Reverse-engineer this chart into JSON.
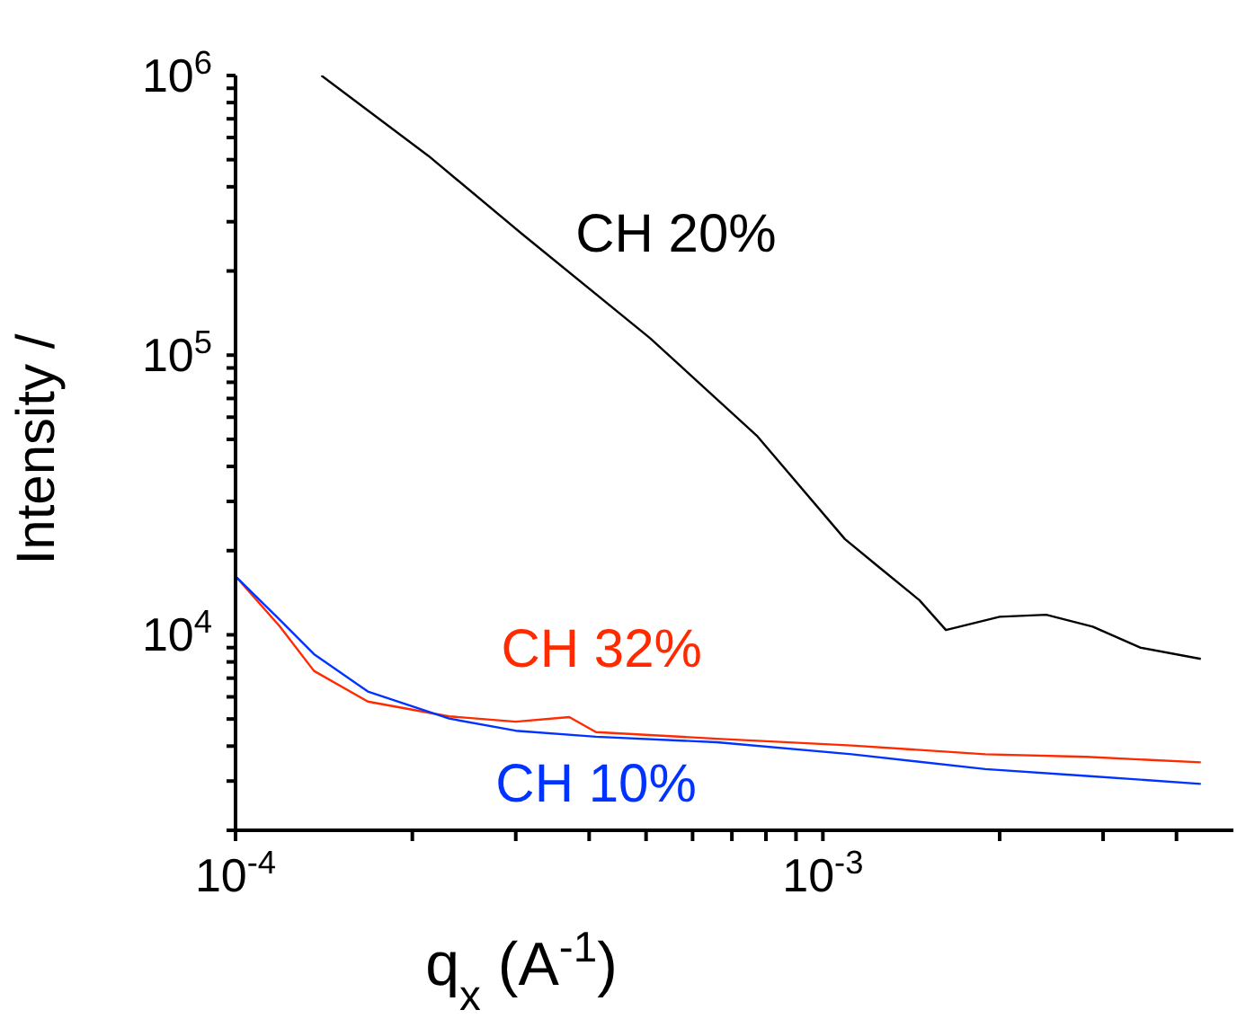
{
  "chart_data": {
    "type": "line",
    "xlabel": "q$_{x}$ (A$^{-1}$)",
    "ylabel": "Intensity /",
    "log": "xy",
    "grid": false,
    "legend": false,
    "marker": "none",
    "line_style": "solid",
    "xlim": [
      0.0001,
      0.005
    ],
    "xticks": [
      {
        "value": 0.0001,
        "label": "10$^{-4}$"
      },
      {
        "value": 0.0002,
        "label": null
      },
      {
        "value": 0.0003,
        "label": null
      },
      {
        "value": 0.0004,
        "label": null
      },
      {
        "value": 0.0005,
        "label": null
      },
      {
        "value": 0.0006,
        "label": null
      },
      {
        "value": 0.0007,
        "label": null
      },
      {
        "value": 0.0008,
        "label": null
      },
      {
        "value": 0.0009,
        "label": null
      },
      {
        "value": 0.001,
        "label": "10$^{-3}$"
      },
      {
        "value": 0.002,
        "label": null
      },
      {
        "value": 0.003,
        "label": null
      },
      {
        "value": 0.004,
        "label": null
      }
    ],
    "ylim": [
      2000,
      1000000
    ],
    "yticks": [
      {
        "value": 2000,
        "label": null
      },
      {
        "value": 3000,
        "label": null
      },
      {
        "value": 4000,
        "label": null
      },
      {
        "value": 5000,
        "label": null
      },
      {
        "value": 6000,
        "label": null
      },
      {
        "value": 7000,
        "label": null
      },
      {
        "value": 8000,
        "label": null
      },
      {
        "value": 9000,
        "label": null
      },
      {
        "value": 10000,
        "label": "10$^{4}$"
      },
      {
        "value": 20000,
        "label": null
      },
      {
        "value": 30000,
        "label": null
      },
      {
        "value": 40000,
        "label": null
      },
      {
        "value": 50000,
        "label": null
      },
      {
        "value": 60000,
        "label": null
      },
      {
        "value": 70000,
        "label": null
      },
      {
        "value": 80000,
        "label": null
      },
      {
        "value": 90000,
        "label": null
      },
      {
        "value": 100000,
        "label": "10$^{5}$"
      },
      {
        "value": 200000,
        "label": null
      },
      {
        "value": 300000,
        "label": null
      },
      {
        "value": 400000,
        "label": null
      },
      {
        "value": 500000,
        "label": null
      },
      {
        "value": 600000,
        "label": null
      },
      {
        "value": 700000,
        "label": null
      },
      {
        "value": 800000,
        "label": null
      },
      {
        "value": 900000,
        "label": null
      },
      {
        "value": 1000000,
        "label": "10$^{6}$"
      }
    ],
    "series": [
      {
        "name": "CH 20%",
        "color": "#000000",
        "x": [
          0.00014,
          0.000213,
          0.000307,
          0.000508,
          0.000774,
          0.00109,
          0.00124,
          0.00146,
          0.00162,
          0.002,
          0.0024,
          0.00288,
          0.00347,
          0.0044
        ],
        "values": [
          1000000,
          516000,
          272000,
          115000,
          51200,
          22000,
          17600,
          13300,
          10400,
          11600,
          11800,
          10700,
          9000,
          8200
        ]
      },
      {
        "name": "CH 32%",
        "color": "#ff2a00",
        "x": [
          0.0001,
          0.000119,
          0.000136,
          0.000168,
          0.000231,
          0.0003,
          0.00037,
          0.000411,
          0.00066,
          0.00112,
          0.00189,
          0.00281,
          0.0044
        ],
        "values": [
          16200,
          10700,
          7430,
          5770,
          5110,
          4890,
          5080,
          4490,
          4250,
          4020,
          3740,
          3660,
          3500
        ]
      },
      {
        "name": "CH 10%",
        "color": "#0033ff",
        "x": [
          0.0001,
          0.000119,
          0.000136,
          0.000168,
          0.000231,
          0.0003,
          0.000411,
          0.00066,
          0.00112,
          0.00189,
          0.00281,
          0.0044
        ],
        "values": [
          16200,
          11300,
          8530,
          6270,
          5020,
          4540,
          4320,
          4130,
          3740,
          3310,
          3130,
          2930
        ]
      }
    ]
  }
}
